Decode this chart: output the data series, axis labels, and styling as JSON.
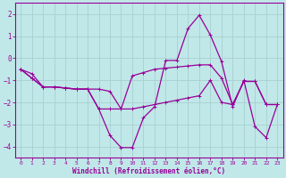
{
  "xlabel": "Windchill (Refroidissement éolien,°C)",
  "background_color": "#c0e8e8",
  "line_color": "#990099",
  "grid_color": "#a8d0d0",
  "xlim": [
    -0.5,
    23.5
  ],
  "ylim": [
    -4.5,
    2.5
  ],
  "yticks": [
    -4,
    -3,
    -2,
    -1,
    0,
    1,
    2
  ],
  "xticks": [
    0,
    1,
    2,
    3,
    4,
    5,
    6,
    7,
    8,
    9,
    10,
    11,
    12,
    13,
    14,
    15,
    16,
    17,
    18,
    19,
    20,
    21,
    22,
    23
  ],
  "x": [
    0,
    1,
    2,
    3,
    4,
    5,
    6,
    7,
    8,
    9,
    10,
    11,
    12,
    13,
    14,
    15,
    16,
    17,
    18,
    19,
    20,
    21,
    22,
    23
  ],
  "main_line": [
    -0.5,
    -0.9,
    -1.3,
    -1.3,
    -1.35,
    -1.4,
    -1.4,
    -2.3,
    -3.5,
    -4.05,
    -4.05,
    -2.7,
    -2.2,
    -0.1,
    -0.1,
    1.35,
    1.95,
    1.05,
    -0.15,
    -2.2,
    -1.0,
    -3.1,
    -3.6,
    -2.1
  ],
  "upper_line": [
    -0.5,
    -0.7,
    -1.3,
    -1.3,
    -1.35,
    -1.4,
    -1.4,
    -1.4,
    -1.5,
    -2.3,
    -0.8,
    -0.65,
    -0.5,
    -0.45,
    -0.4,
    -0.35,
    -0.3,
    -0.3,
    -0.9,
    -2.1,
    -1.05,
    -1.05,
    -2.1,
    -2.1
  ],
  "lower_line": [
    -0.5,
    -0.9,
    -1.3,
    -1.3,
    -1.35,
    -1.4,
    -1.4,
    -2.3,
    -2.3,
    -2.3,
    -2.3,
    -2.2,
    -2.1,
    -2.0,
    -1.9,
    -1.8,
    -1.7,
    -1.0,
    -2.0,
    -2.1,
    -1.05,
    -1.05,
    -2.1,
    -2.1
  ]
}
